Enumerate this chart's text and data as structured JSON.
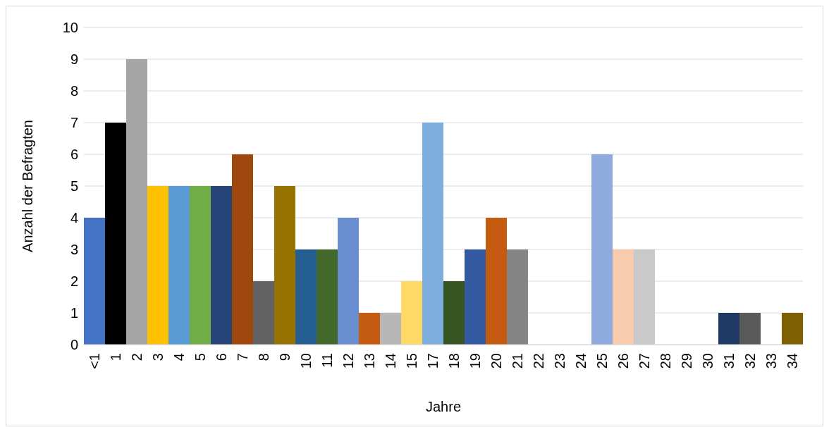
{
  "chart_data": {
    "type": "bar",
    "xlabel": "Jahre",
    "ylabel": "Anzahl der Befragten",
    "categories": [
      "<1",
      "1",
      "2",
      "3",
      "4",
      "5",
      "6",
      "7",
      "8",
      "9",
      "10",
      "11",
      "12",
      "13",
      "14",
      "15",
      "17",
      "18",
      "19",
      "20",
      "21",
      "22",
      "23",
      "24",
      "25",
      "26",
      "27",
      "28",
      "29",
      "30",
      "31",
      "32",
      "33",
      "34"
    ],
    "values": [
      4,
      7,
      9,
      5,
      5,
      5,
      5,
      6,
      2,
      5,
      3,
      3,
      4,
      1,
      1,
      2,
      7,
      2,
      3,
      4,
      3,
      0,
      0,
      0,
      6,
      3,
      3,
      0,
      0,
      0,
      1,
      1,
      0,
      1
    ],
    "colors": [
      "#4472c4",
      "#000000",
      "#a5a5a5",
      "#ffc000",
      "#5b9bd5",
      "#70ad47",
      "#264478",
      "#9e480e",
      "#636363",
      "#997300",
      "#255e91",
      "#43682b",
      "#698ed0",
      "#c55a11",
      "#b7b7b7",
      "#ffd966",
      "#7cafdd",
      "#375623",
      "#335aa1",
      "#c55a11",
      "#848484",
      "#848484",
      "#848484",
      "#848484",
      "#8faadc",
      "#f8cbad",
      "#c9c9c9",
      "#c9c9c9",
      "#c9c9c9",
      "#c9c9c9",
      "#203864",
      "#595959",
      "#595959",
      "#7f6000"
    ],
    "ylim": [
      0,
      10
    ],
    "yticks": [
      0,
      1,
      2,
      3,
      4,
      5,
      6,
      7,
      8,
      9,
      10
    ],
    "grid": "y"
  }
}
